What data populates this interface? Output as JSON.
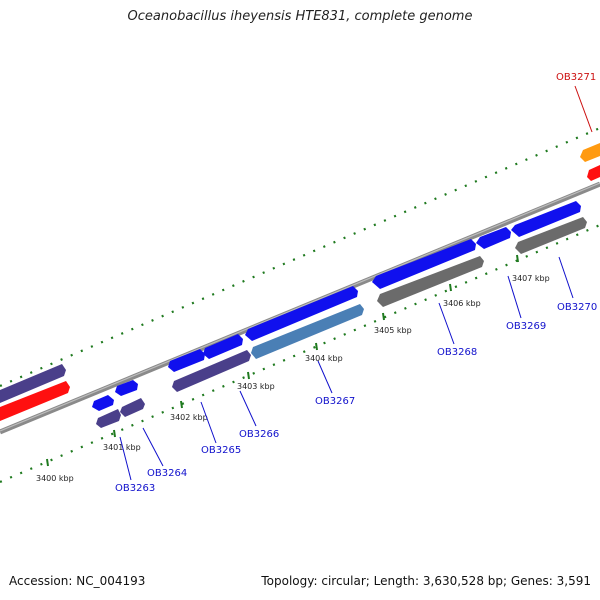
{
  "title": "Oceanobacillus iheyensis HTE831, complete genome",
  "accession": "Accession: NC_004193",
  "summary": "Topology: circular; Length: 3,630,528 bp; Genes: 3,591",
  "colors": {
    "forward_gene": "#1010ee",
    "reverse_gene_dark": "#4a3f8a",
    "reverse_gene_gray": "#6b6b6b",
    "steelblue_gene": "#4a7fb5",
    "red_gene": "#ff1010",
    "orange_gene": "#ff9a10",
    "backbone": "#8a8a8a",
    "tick": "#1f7a1f",
    "label_blue": "#1010cc",
    "label_red": "#cc1010"
  },
  "tick_labels": [
    "3400 kbp",
    "3401 kbp",
    "3402 kbp",
    "3403 kbp",
    "3404 kbp",
    "3405 kbp",
    "3406 kbp",
    "3407 kbp"
  ],
  "gene_labels": [
    "OB3263",
    "OB3264",
    "OB3265",
    "OB3266",
    "OB3267",
    "OB3268",
    "OB3269",
    "OB3270",
    "OB3271"
  ]
}
